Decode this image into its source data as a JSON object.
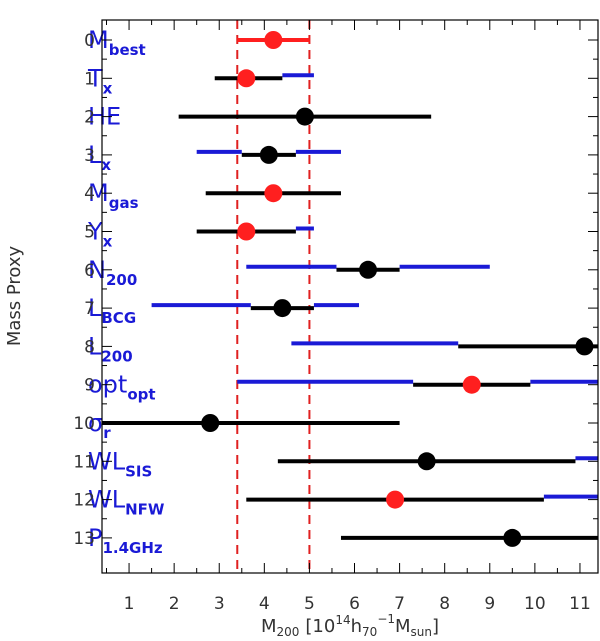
{
  "chart_data": {
    "type": "scatter",
    "subtype": "error-bar forest plot",
    "xlabel": {
      "main": "M",
      "main_sub": "200",
      "pre": "[10",
      "sup1": "14",
      "h": "h",
      "h_sub": "70",
      "sup2": "−1",
      "m": "M",
      "m_sub": "sun",
      "post": "]"
    },
    "ylabel": "Mass Proxy",
    "xlim": [
      0.4,
      11.4
    ],
    "ylim": [
      13.9,
      -0.6
    ],
    "xticks": [
      "1",
      "2",
      "3",
      "4",
      "5",
      "6",
      "7",
      "8",
      "9",
      "10",
      "11"
    ],
    "yticks": [
      "0",
      "1",
      "2",
      "3",
      "4",
      "5",
      "6",
      "7",
      "8",
      "9",
      "10",
      "11",
      "12",
      "13"
    ],
    "reference_lines": [
      3.4,
      5.0
    ],
    "colors": {
      "black": "#000000",
      "blue": "#1a1ad6",
      "red": "#ff1f1f",
      "ref_line": "#e02020"
    },
    "proxies": [
      {
        "index": 0,
        "label": "M",
        "sub": "best",
        "value": 4.2,
        "marker": "red",
        "bar": [
          3.4,
          5.0
        ],
        "bar_color": "red",
        "blue_bars": []
      },
      {
        "index": 1,
        "label": "T",
        "sub": "x",
        "value": 3.6,
        "marker": "red",
        "bar": [
          2.9,
          4.4
        ],
        "bar_color": "black",
        "blue_bars": [
          [
            4.4,
            5.1
          ]
        ]
      },
      {
        "index": 2,
        "label": "HE",
        "sub": "",
        "value": 4.9,
        "marker": "black",
        "bar": [
          2.1,
          7.7
        ],
        "bar_color": "black",
        "blue_bars": []
      },
      {
        "index": 3,
        "label": "L",
        "sub": "x",
        "value": 4.1,
        "marker": "black",
        "bar": [
          3.5,
          4.7
        ],
        "bar_color": "black",
        "blue_bars": [
          [
            2.5,
            3.5
          ],
          [
            4.7,
            5.7
          ]
        ]
      },
      {
        "index": 4,
        "label": "M",
        "sub": "gas",
        "value": 4.2,
        "marker": "red",
        "bar": [
          2.7,
          5.7
        ],
        "bar_color": "black",
        "blue_bars": []
      },
      {
        "index": 5,
        "label": "Y",
        "sub": "x",
        "value": 3.6,
        "marker": "red",
        "bar": [
          2.5,
          4.7
        ],
        "bar_color": "black",
        "blue_bars": [
          [
            4.7,
            5.1
          ]
        ]
      },
      {
        "index": 6,
        "label": "N",
        "sub": "200",
        "value": 6.3,
        "marker": "black",
        "bar": [
          5.6,
          7.0
        ],
        "bar_color": "black",
        "blue_bars": [
          [
            3.6,
            5.6
          ],
          [
            7.0,
            9.0
          ]
        ]
      },
      {
        "index": 7,
        "label": "L",
        "sub": "BCG",
        "value": 4.4,
        "marker": "black",
        "bar": [
          3.7,
          5.1
        ],
        "bar_color": "black",
        "blue_bars": [
          [
            1.5,
            3.7
          ],
          [
            5.1,
            6.1
          ]
        ]
      },
      {
        "index": 8,
        "label": "L",
        "sub": "200",
        "value": 11.1,
        "marker": "black",
        "bar": [
          8.3,
          11.4
        ],
        "bar_color": "black",
        "blue_bars": [
          [
            4.6,
            8.3
          ]
        ]
      },
      {
        "index": 9,
        "label": "opt",
        "sub": "opt",
        "value": 8.6,
        "marker": "red",
        "bar": [
          7.3,
          9.9
        ],
        "bar_color": "black",
        "blue_bars": [
          [
            3.4,
            7.3
          ],
          [
            9.9,
            11.4
          ]
        ]
      },
      {
        "index": 10,
        "label": "σ",
        "sub": "r",
        "value": 2.8,
        "marker": "black",
        "bar": [
          0.4,
          7.0
        ],
        "bar_color": "black",
        "blue_bars": []
      },
      {
        "index": 11,
        "label": "WL",
        "sub": "SIS",
        "value": 7.6,
        "marker": "black",
        "bar": [
          4.3,
          10.9
        ],
        "bar_color": "black",
        "blue_bars": [
          [
            10.9,
            11.4
          ]
        ]
      },
      {
        "index": 12,
        "label": "WL",
        "sub": "NFW",
        "value": 6.9,
        "marker": "red",
        "bar": [
          3.6,
          10.2
        ],
        "bar_color": "black",
        "blue_bars": [
          [
            10.2,
            11.4
          ]
        ]
      },
      {
        "index": 13,
        "label": "P",
        "sub": "1.4GHz",
        "value": 9.5,
        "marker": "black",
        "bar": [
          5.7,
          11.4
        ],
        "bar_color": "black",
        "blue_bars": []
      }
    ]
  }
}
